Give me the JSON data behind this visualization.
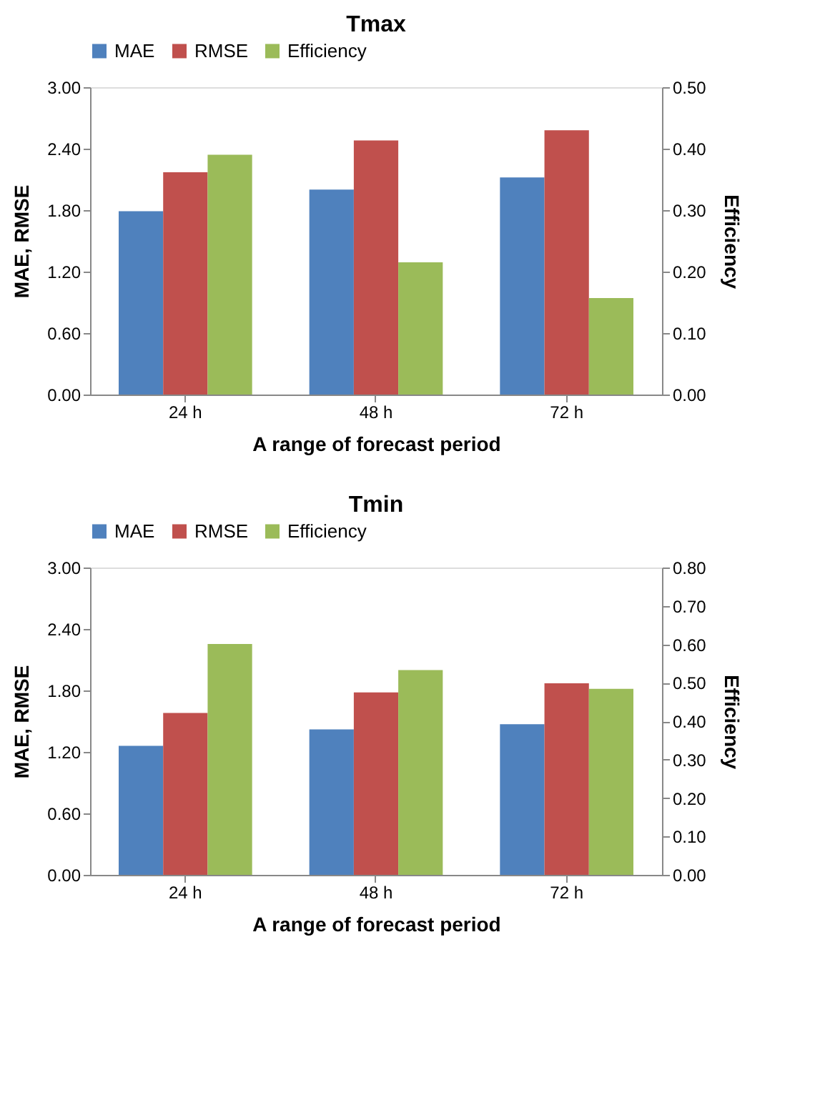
{
  "chart_data": [
    {
      "type": "bar",
      "title": "Tmax",
      "xlabel": "A range of forecast period",
      "ylabel": "MAE, RMSE",
      "y2label": "Efficiency",
      "categories": [
        "24 h",
        "48 h",
        "72 h"
      ],
      "series": [
        {
          "name": "MAE",
          "color": "#4f81bd",
          "values": [
            1.79,
            2.0,
            2.12
          ]
        },
        {
          "name": "RMSE",
          "color": "#c0504d",
          "values": [
            2.17,
            2.48,
            2.58
          ]
        },
        {
          "name": "Efficiency",
          "color": "#9bbb59",
          "values": [
            0.39,
            0.215,
            0.157
          ],
          "axis": "y2"
        }
      ],
      "ylim": [
        0,
        3
      ],
      "yticks": [
        {
          "value": 0,
          "label": "0.00"
        },
        {
          "value": 0.6,
          "label": "0.60"
        },
        {
          "value": 1.2,
          "label": "1.20"
        },
        {
          "value": 1.8,
          "label": "1.80"
        },
        {
          "value": 2.4,
          "label": "2.40"
        },
        {
          "value": 3,
          "label": "3.00"
        }
      ],
      "y2lim": [
        0,
        0.5
      ],
      "y2ticks": [
        {
          "value": 0,
          "label": "0.00"
        },
        {
          "value": 0.1,
          "label": "0.10"
        },
        {
          "value": 0.2,
          "label": "0.20"
        },
        {
          "value": 0.3,
          "label": "0.30"
        },
        {
          "value": 0.4,
          "label": "0.40"
        },
        {
          "value": 0.5,
          "label": "0.50"
        }
      ],
      "grid": false,
      "legend": "top"
    },
    {
      "type": "bar",
      "title": "Tmin",
      "xlabel": "A range of forecast period",
      "ylabel": "MAE, RMSE",
      "y2label": "Efficiency",
      "categories": [
        "24 h",
        "48 h",
        "72 h"
      ],
      "series": [
        {
          "name": "MAE",
          "color": "#4f81bd",
          "values": [
            1.26,
            1.42,
            1.47
          ]
        },
        {
          "name": "RMSE",
          "color": "#c0504d",
          "values": [
            1.58,
            1.78,
            1.87
          ]
        },
        {
          "name": "Efficiency",
          "color": "#9bbb59",
          "values": [
            0.601,
            0.533,
            0.484
          ],
          "axis": "y2"
        }
      ],
      "ylim": [
        0,
        3
      ],
      "yticks": [
        {
          "value": 0,
          "label": "0.00"
        },
        {
          "value": 0.6,
          "label": "0.60"
        },
        {
          "value": 1.2,
          "label": "1.20"
        },
        {
          "value": 1.8,
          "label": "1.80"
        },
        {
          "value": 2.4,
          "label": "2.40"
        },
        {
          "value": 3,
          "label": "3.00"
        }
      ],
      "y2lim": [
        0,
        0.8
      ],
      "y2ticks": [
        {
          "value": 0,
          "label": "0.00"
        },
        {
          "value": 0.1,
          "label": "0.10"
        },
        {
          "value": 0.2,
          "label": "0.20"
        },
        {
          "value": 0.3,
          "label": "0.30"
        },
        {
          "value": 0.4,
          "label": "0.40"
        },
        {
          "value": 0.5,
          "label": "0.50"
        },
        {
          "value": 0.6,
          "label": "0.60"
        },
        {
          "value": 0.7,
          "label": "0.70"
        },
        {
          "value": 0.8,
          "label": "0.80"
        }
      ],
      "grid": false,
      "legend": "top"
    }
  ]
}
